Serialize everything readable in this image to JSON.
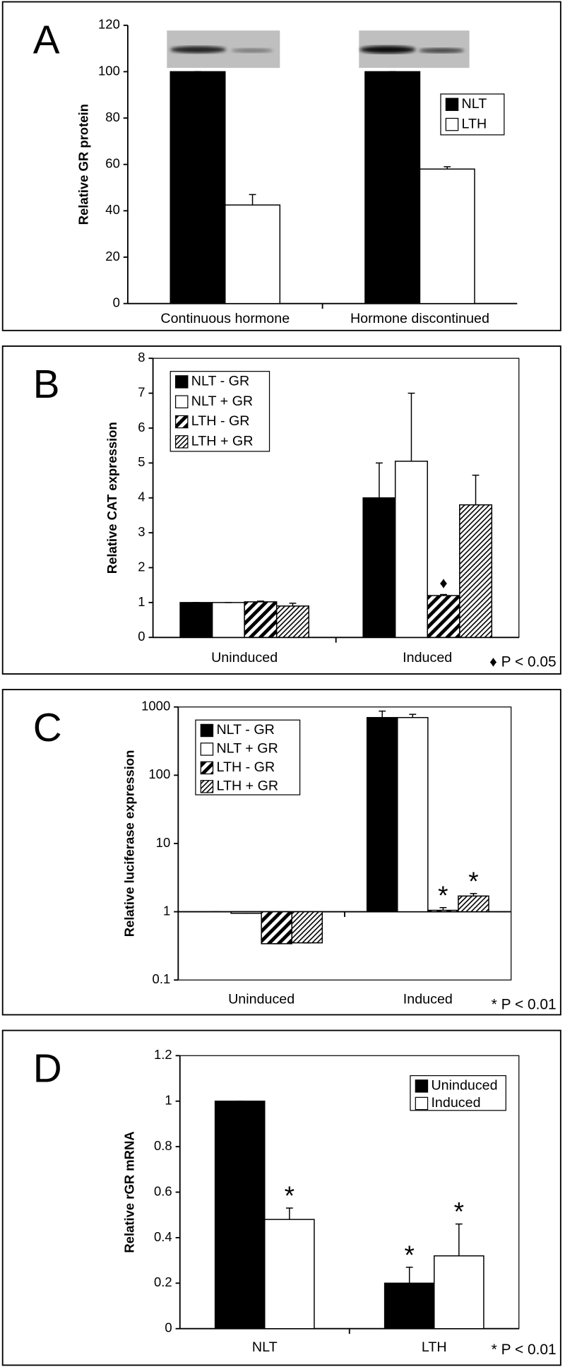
{
  "chart_data": [
    {
      "type": "bar",
      "panel": "A",
      "ylabel": "Relative GR protein",
      "categories": [
        "Continuous hormone",
        "Hormone discontinued"
      ],
      "series": [
        {
          "name": "NLT",
          "color": "#000000",
          "values": [
            100,
            100
          ],
          "errors": [
            0,
            0
          ]
        },
        {
          "name": "LTH",
          "color": "#ffffff",
          "values": [
            42.5,
            58
          ],
          "errors": [
            4.5,
            1
          ]
        }
      ],
      "ylim": [
        0,
        120
      ],
      "yticks": [
        0,
        20,
        40,
        60,
        80,
        100,
        120
      ],
      "legend": "upper right",
      "frame": false
    },
    {
      "type": "bar",
      "panel": "B",
      "ylabel": "Relative CAT expression",
      "annotation": "♦ P < 0.05",
      "categories": [
        "Uninduced",
        "Induced"
      ],
      "series": [
        {
          "name": "NLT - GR",
          "color": "#000000",
          "values": [
            1,
            4
          ],
          "errors": [
            0,
            1
          ]
        },
        {
          "name": "NLT + GR",
          "color": "#ffffff",
          "values": [
            1,
            5.05
          ],
          "errors": [
            0,
            1.95
          ]
        },
        {
          "name": "LTH - GR",
          "color": "#000000",
          "pattern": "hatch",
          "values": [
            1.02,
            1.2
          ],
          "errors": [
            0.02,
            0.03
          ],
          "sig": [
            null,
            "♦"
          ]
        },
        {
          "name": "LTH + GR",
          "color": "#000000",
          "pattern": "fine-hatch",
          "values": [
            0.9,
            3.8
          ],
          "errors": [
            0.08,
            0.85
          ]
        }
      ],
      "ylim": [
        0,
        8
      ],
      "yticks": [
        0,
        1,
        2,
        3,
        4,
        5,
        6,
        7,
        8
      ],
      "legend": "upper left",
      "frame": true
    },
    {
      "type": "bar",
      "panel": "C",
      "ylabel": "Relative luciferase expression",
      "annotation": "* P < 0.01",
      "categories": [
        "Uninduced",
        "Induced"
      ],
      "series": [
        {
          "name": "NLT - GR",
          "color": "#000000",
          "values": [
            1,
            700
          ],
          "errors": [
            0,
            170
          ]
        },
        {
          "name": "NLT + GR",
          "color": "#ffffff",
          "values": [
            0.95,
            700
          ],
          "errors": [
            0,
            80
          ]
        },
        {
          "name": "LTH - GR",
          "color": "#000000",
          "pattern": "hatch",
          "values": [
            0.34,
            1.05
          ],
          "errors": [
            0,
            0.1
          ],
          "sig": [
            null,
            "*"
          ]
        },
        {
          "name": "LTH + GR",
          "color": "#000000",
          "pattern": "fine-hatch",
          "values": [
            0.35,
            1.7
          ],
          "errors": [
            0,
            0.15
          ],
          "sig": [
            null,
            "*"
          ]
        }
      ],
      "log_scale": true,
      "ylim": [
        0.1,
        1000
      ],
      "yticks": [
        0.1,
        1,
        10,
        100,
        1000
      ],
      "legend": "upper left",
      "frame": true
    },
    {
      "type": "bar",
      "panel": "D",
      "ylabel": "Relative rGR mRNA",
      "annotation": "* P < 0.01",
      "categories": [
        "NLT",
        "LTH"
      ],
      "series": [
        {
          "name": "Uninduced",
          "color": "#000000",
          "values": [
            1,
            0.2
          ],
          "errors": [
            0,
            0.07
          ],
          "sig": [
            null,
            "*"
          ]
        },
        {
          "name": "Induced",
          "color": "#ffffff",
          "values": [
            0.48,
            0.32
          ],
          "errors": [
            0.05,
            0.14
          ],
          "sig": [
            "*",
            "*"
          ]
        }
      ],
      "ylim": [
        0,
        1.2
      ],
      "yticks": [
        0,
        0.2,
        0.4,
        0.6,
        0.8,
        1,
        1.2
      ],
      "legend": "upper right",
      "frame": true
    }
  ]
}
